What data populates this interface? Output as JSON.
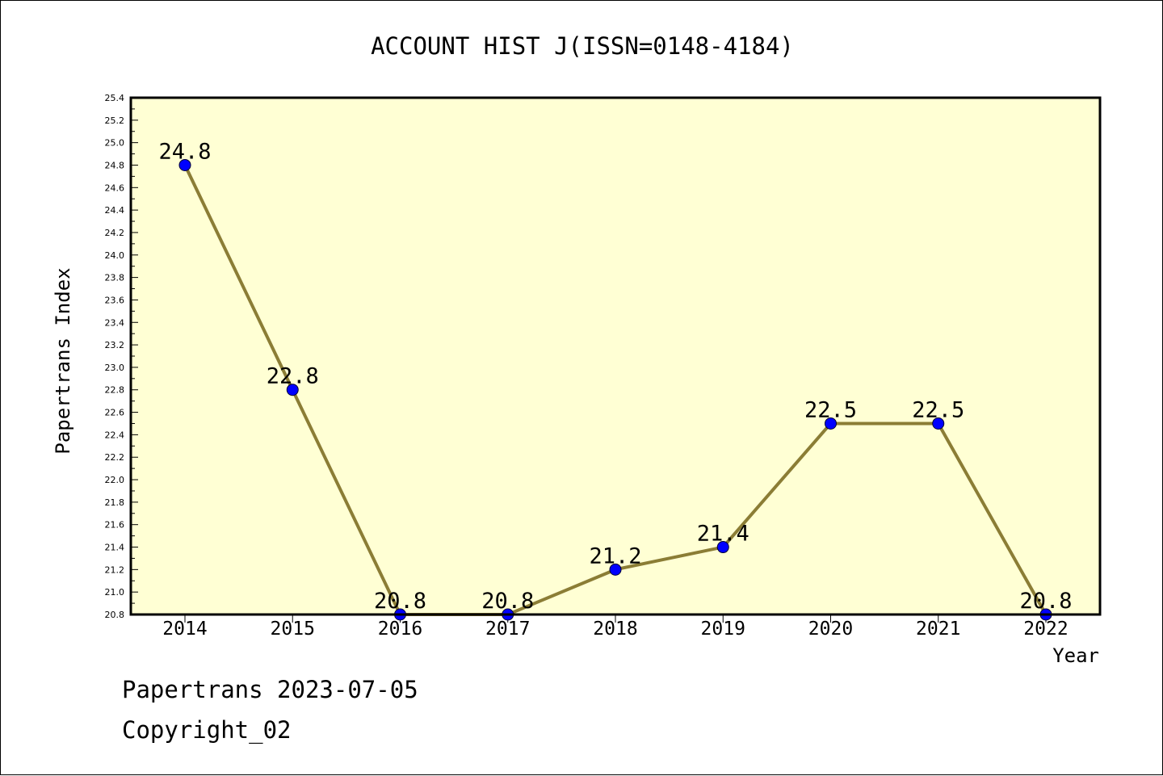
{
  "chart_data": {
    "type": "line",
    "title": "ACCOUNT HIST J(ISSN=0148-4184)",
    "xlabel": "Year",
    "ylabel": "Papertrans Index",
    "categories": [
      "2014",
      "2015",
      "2016",
      "2017",
      "2018",
      "2019",
      "2020",
      "2021",
      "2022"
    ],
    "series": [
      {
        "values": [
          24.8,
          22.8,
          20.8,
          20.8,
          21.2,
          21.4,
          22.5,
          22.5,
          20.8
        ]
      }
    ],
    "data_labels": [
      "24.8",
      "22.8",
      "20.8",
      "20.8",
      "21.2",
      "21.4",
      "22.5",
      "22.5",
      "20.8"
    ],
    "ylim": [
      20.8,
      25.4
    ],
    "yticks": [
      "20.8",
      "21.0",
      "21.2",
      "21.4",
      "21.6",
      "21.8",
      "22.0",
      "22.2",
      "22.4",
      "22.6",
      "22.8",
      "23.0",
      "23.2",
      "23.4",
      "23.6",
      "23.8",
      "24.0",
      "24.2",
      "24.4",
      "24.6",
      "24.8",
      "25.0",
      "25.2",
      "25.4"
    ],
    "grid": false,
    "legend": "none",
    "colors": {
      "plot_background": "#ffffd4",
      "line": "#8b7d35",
      "marker": "#0000ff"
    }
  },
  "footer": {
    "line1": "Papertrans 2023-07-05",
    "line2": "Copyright_02"
  }
}
